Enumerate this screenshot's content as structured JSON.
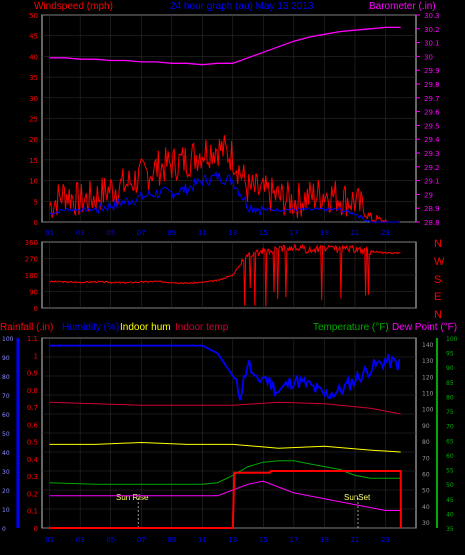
{
  "header": {
    "wind_label": "Windspeed (mph)",
    "graph_title": "24 hour graph (au)  May 13 2013",
    "baro_label": "Barometer (.in)"
  },
  "colors": {
    "wind": "#ff0000",
    "wind_avg": "#0000ff",
    "barometer": "#ff00ff",
    "direction": "#ff0000",
    "humidity": "#0000ff",
    "indoor_hum": "#ffff00",
    "indoor_temp": "#cc0033",
    "temperature": "#00aa00",
    "dew_point": "#ff00ff",
    "rainfall": "#ff0000",
    "grid": "#333333",
    "axis": "#cccccc"
  },
  "compass": [
    "N",
    "W",
    "S",
    "E",
    "N"
  ],
  "bottom_legend": {
    "rainfall": "Rainfall (.in)",
    "humidity": "Humidity (%)",
    "indoor_hum": "Indoor hum",
    "indoor_temp": "Indoor temp",
    "temperature": "Temperature (°F)",
    "dew_point": "Dew Point (°F)"
  },
  "sun_labels": {
    "rise": "Sun Rise",
    "set": "SunSet"
  },
  "chart_data": [
    {
      "type": "line",
      "title": "24 hour graph (au)  May 13 2013",
      "x_ticks": [
        "01",
        "03",
        "05",
        "07",
        "09",
        "11",
        "13",
        "15",
        "17",
        "19",
        "21",
        "23"
      ],
      "y_left_label": "Windspeed (mph)",
      "y_left_ticks": [
        0,
        5,
        10,
        15,
        20,
        25,
        30,
        35,
        40,
        45,
        50
      ],
      "ylim_left": [
        0,
        50
      ],
      "y_right_label": "Barometer (.in)",
      "y_right_ticks": [
        "28.8",
        "28.9",
        "29",
        "29.1",
        "29.2",
        "29.3",
        "29.4",
        "29.5",
        "29.6",
        "29.7",
        "29.8",
        "29.9",
        "30",
        "30.1",
        "30.2",
        "30.3"
      ],
      "ylim_right": [
        28.8,
        30.3
      ],
      "series": [
        {
          "name": "Windspeed (mph)",
          "color": "wind",
          "x": [
            0,
            1,
            2,
            3,
            4,
            5,
            6,
            7,
            8,
            9,
            10,
            11,
            12,
            13,
            14,
            15,
            16,
            17,
            18,
            19,
            20,
            21,
            22,
            23
          ],
          "values": [
            4,
            7,
            5,
            6,
            8,
            9,
            11,
            13,
            14,
            15,
            17,
            18,
            16,
            8,
            7,
            6,
            5,
            6,
            7,
            6,
            5,
            1,
            0,
            0
          ]
        },
        {
          "name": "Wind average",
          "color": "wind_avg",
          "x": [
            0,
            1,
            2,
            3,
            4,
            5,
            6,
            7,
            8,
            9,
            10,
            11,
            12,
            13,
            14,
            15,
            16,
            17,
            18,
            19,
            20,
            21,
            22,
            23
          ],
          "values": [
            2,
            3,
            3,
            3,
            4,
            5,
            6,
            7,
            7,
            8,
            10,
            11,
            10,
            4,
            3,
            3,
            3,
            3,
            3,
            3,
            2,
            0,
            0,
            0
          ]
        },
        {
          "name": "Barometer (.in)",
          "color": "barometer",
          "x": [
            0,
            1,
            2,
            3,
            4,
            5,
            6,
            7,
            8,
            9,
            10,
            11,
            12,
            13,
            14,
            15,
            16,
            17,
            18,
            19,
            20,
            21,
            22,
            23
          ],
          "values": [
            29.99,
            29.99,
            29.98,
            29.98,
            29.97,
            29.97,
            29.96,
            29.96,
            29.95,
            29.95,
            29.94,
            29.95,
            29.95,
            29.99,
            30.03,
            30.07,
            30.11,
            30.14,
            30.16,
            30.18,
            30.19,
            30.2,
            30.21,
            30.21
          ]
        }
      ]
    },
    {
      "type": "scatter",
      "y_ticks": [
        0,
        90,
        180,
        270,
        360
      ],
      "ylim": [
        0,
        360
      ],
      "series": [
        {
          "name": "Wind direction",
          "x": [
            0,
            1,
            2,
            3,
            4,
            5,
            6,
            7,
            8,
            9,
            10,
            11,
            12,
            13,
            14,
            15,
            16,
            17,
            18,
            19,
            20,
            21,
            22,
            23
          ],
          "values": [
            145,
            142,
            140,
            143,
            140,
            138,
            142,
            145,
            140,
            135,
            140,
            150,
            180,
            300,
            310,
            320,
            330,
            315,
            325,
            320,
            320,
            310,
            300,
            300
          ]
        }
      ]
    },
    {
      "type": "line",
      "x_ticks": [
        "01",
        "03",
        "05",
        "07",
        "09",
        "11",
        "13",
        "15",
        "17",
        "19",
        "21",
        "23"
      ],
      "y_rain_ticks": [
        "0",
        "0.1",
        "0.2",
        "0.3",
        "0.4",
        "0.5",
        "0.6",
        "0.7",
        "0.8",
        "0.9",
        "1",
        "1.1"
      ],
      "ylim_rain": [
        0,
        1.1
      ],
      "y_hum_ticks": [
        0,
        10,
        20,
        30,
        40,
        50,
        60,
        70,
        80,
        90,
        100
      ],
      "ylim_hum": [
        0,
        100
      ],
      "y_temp_ticks": [
        35,
        40,
        45,
        50,
        55,
        60,
        65,
        70,
        75,
        80,
        85,
        90,
        95,
        100
      ],
      "ylim_temp": [
        35,
        100
      ],
      "y_outer_ticks": [
        30,
        40,
        50,
        60,
        70,
        80,
        90,
        100,
        110,
        120,
        130,
        140
      ],
      "series": [
        {
          "name": "Humidity (%)",
          "color": "humidity",
          "axis": "hum",
          "x": [
            0,
            2,
            4,
            6,
            8,
            10,
            11,
            12,
            12.5,
            13,
            13.5,
            14,
            15,
            16,
            17,
            18,
            19,
            20,
            21,
            22,
            23
          ],
          "values": [
            96,
            96,
            96,
            96,
            96,
            96,
            92,
            80,
            70,
            88,
            76,
            80,
            72,
            78,
            75,
            70,
            72,
            78,
            84,
            88,
            86
          ]
        },
        {
          "name": "Indoor hum",
          "color": "indoor_hum",
          "axis": "hum",
          "x": [
            0,
            3,
            6,
            9,
            12,
            15,
            18,
            21,
            23
          ],
          "values": [
            44,
            44,
            45,
            44,
            44,
            42,
            43,
            41,
            40
          ]
        },
        {
          "name": "Indoor temp",
          "color": "indoor_temp",
          "axis": "temp",
          "x": [
            0,
            3,
            6,
            9,
            12,
            15,
            18,
            21,
            23
          ],
          "values": [
            78,
            77.5,
            77,
            77,
            77,
            78,
            77.5,
            76,
            74
          ]
        },
        {
          "name": "Temperature (°F)",
          "color": "temperature",
          "axis": "temp",
          "x": [
            0,
            3,
            6,
            9,
            10,
            11,
            12,
            13,
            14,
            15,
            16,
            17,
            18,
            19,
            20,
            21,
            22,
            23
          ],
          "values": [
            50.5,
            50,
            50,
            50,
            50,
            50.5,
            53,
            56,
            57.5,
            58,
            58,
            57,
            56,
            55,
            53,
            52,
            52,
            52
          ]
        },
        {
          "name": "Dew Point (°F)",
          "color": "dew_point",
          "axis": "temp",
          "x": [
            0,
            3,
            6,
            9,
            10,
            11,
            12,
            13,
            14,
            15,
            16,
            17,
            18,
            19,
            20,
            21,
            22,
            23
          ],
          "values": [
            46,
            46,
            46,
            46,
            46,
            46,
            48,
            50,
            51,
            49,
            47,
            46,
            45,
            44,
            43,
            42,
            41,
            41
          ]
        },
        {
          "name": "Rainfall (.in)",
          "color": "rainfall",
          "axis": "rain",
          "x": [
            0,
            11.5,
            12,
            12.1,
            14.4,
            14.5,
            23,
            23.01
          ],
          "values": [
            0,
            0,
            0,
            0.32,
            0.32,
            0.33,
            0.33,
            0
          ]
        }
      ]
    }
  ]
}
